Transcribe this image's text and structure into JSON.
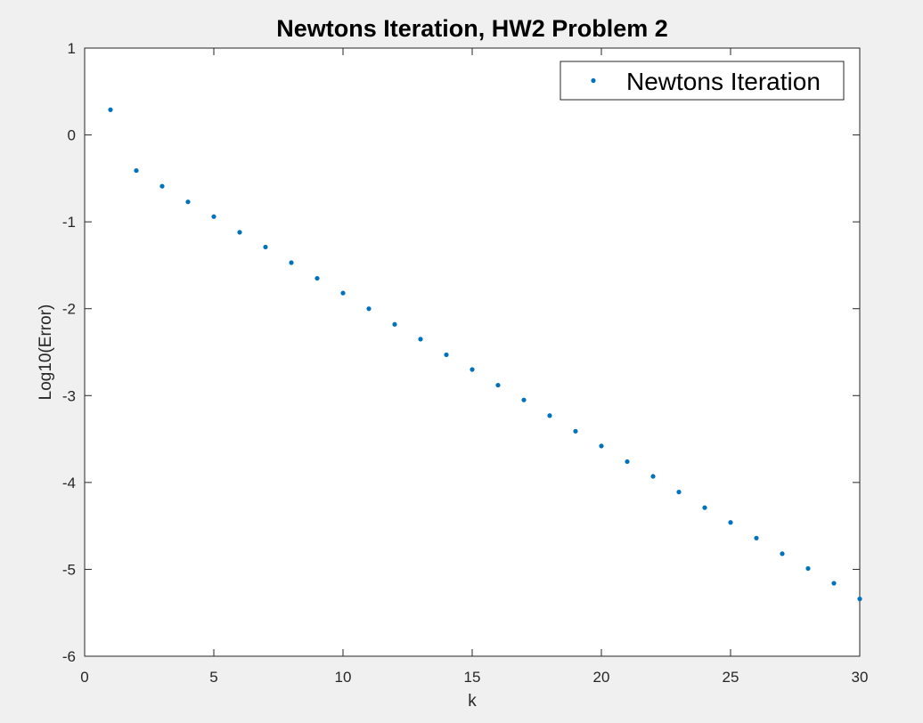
{
  "chart_data": {
    "type": "scatter",
    "title": "Newtons Iteration, HW2 Problem 2",
    "xlabel": "k",
    "ylabel": "Log10(Error)",
    "xlim": [
      0,
      30
    ],
    "ylim": [
      -6,
      1
    ],
    "xticks": [
      0,
      5,
      10,
      15,
      20,
      25,
      30
    ],
    "yticks": [
      1,
      0,
      -1,
      -2,
      -3,
      -4,
      -5,
      -6
    ],
    "grid": false,
    "legend_position": "top-right",
    "series": [
      {
        "name": "Newtons Iteration",
        "color": "#0072bd",
        "marker": "dot",
        "x": [
          1,
          2,
          3,
          4,
          5,
          6,
          7,
          8,
          9,
          10,
          11,
          12,
          13,
          14,
          15,
          16,
          17,
          18,
          19,
          20,
          21,
          22,
          23,
          24,
          25,
          26,
          27,
          28,
          29,
          30
        ],
        "y": [
          0.29,
          -0.41,
          -0.59,
          -0.77,
          -0.94,
          -1.12,
          -1.29,
          -1.47,
          -1.65,
          -1.82,
          -2.0,
          -2.18,
          -2.35,
          -2.53,
          -2.7,
          -2.88,
          -3.05,
          -3.23,
          -3.41,
          -3.58,
          -3.76,
          -3.93,
          -4.11,
          -4.29,
          -4.46,
          -4.64,
          -4.82,
          -4.99,
          -5.16,
          -5.34
        ]
      }
    ]
  }
}
